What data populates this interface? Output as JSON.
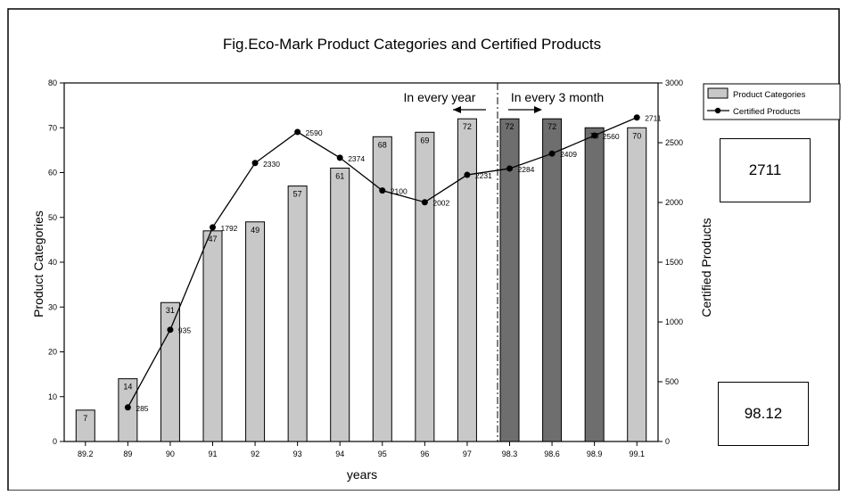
{
  "chart_data": {
    "type": "bar+line",
    "title": "Fig.Eco-Mark Product Categories and Certified Products",
    "xlabel": "years",
    "ylabel_left": "Product Categories",
    "ylabel_right": "Certified Products",
    "categories": [
      "89.2",
      "89",
      "90",
      "91",
      "92",
      "93",
      "94",
      "95",
      "96",
      "97",
      "98.3",
      "98.6",
      "98.9",
      "99.1"
    ],
    "ylim_left": [
      0,
      80
    ],
    "yticks_left": [
      "0",
      "10",
      "20",
      "30",
      "40",
      "50",
      "60",
      "70",
      "80"
    ],
    "ylim_right": [
      0,
      3000
    ],
    "yticks_right": [
      "0",
      "500",
      "1000",
      "1500",
      "2000",
      "2500",
      "3000"
    ],
    "series": [
      {
        "name": "Product Categories",
        "kind": "bar",
        "values": [
          7,
          14,
          31,
          47,
          49,
          57,
          61,
          68,
          69,
          72,
          72,
          72,
          70,
          70
        ],
        "labels": [
          "7",
          "14",
          "31",
          "47",
          "49",
          "57",
          "61",
          "68",
          "69",
          "72",
          "72",
          "72",
          "70",
          "70"
        ],
        "shades": [
          "light",
          "light",
          "light",
          "light",
          "light",
          "light",
          "light",
          "light",
          "light",
          "light",
          "dark",
          "dark",
          "dark",
          "light"
        ]
      },
      {
        "name": "Certified Products",
        "kind": "line",
        "values": [
          null,
          285,
          935,
          1792,
          2330,
          2590,
          2374,
          2100,
          2002,
          2231,
          2284,
          2409,
          2560,
          2711
        ],
        "labels": [
          "",
          "285",
          "935",
          "1792",
          "2330",
          "2590",
          "2374",
          "2100",
          "2002",
          "2231",
          "2284",
          "2409",
          "2560",
          "2711"
        ]
      }
    ],
    "annotations": {
      "left_period": "In every year",
      "right_period": "In every 3 month"
    },
    "legend": {
      "placement": "top-right",
      "bar_label": "Product Categories",
      "line_label": "Certified Products"
    },
    "colors": {
      "light_bar": "#c8c8c8",
      "dark_bar": "#6e6e6e",
      "line": "#000000"
    }
  },
  "side_values": {
    "top": "2711",
    "bottom": "98.12"
  }
}
